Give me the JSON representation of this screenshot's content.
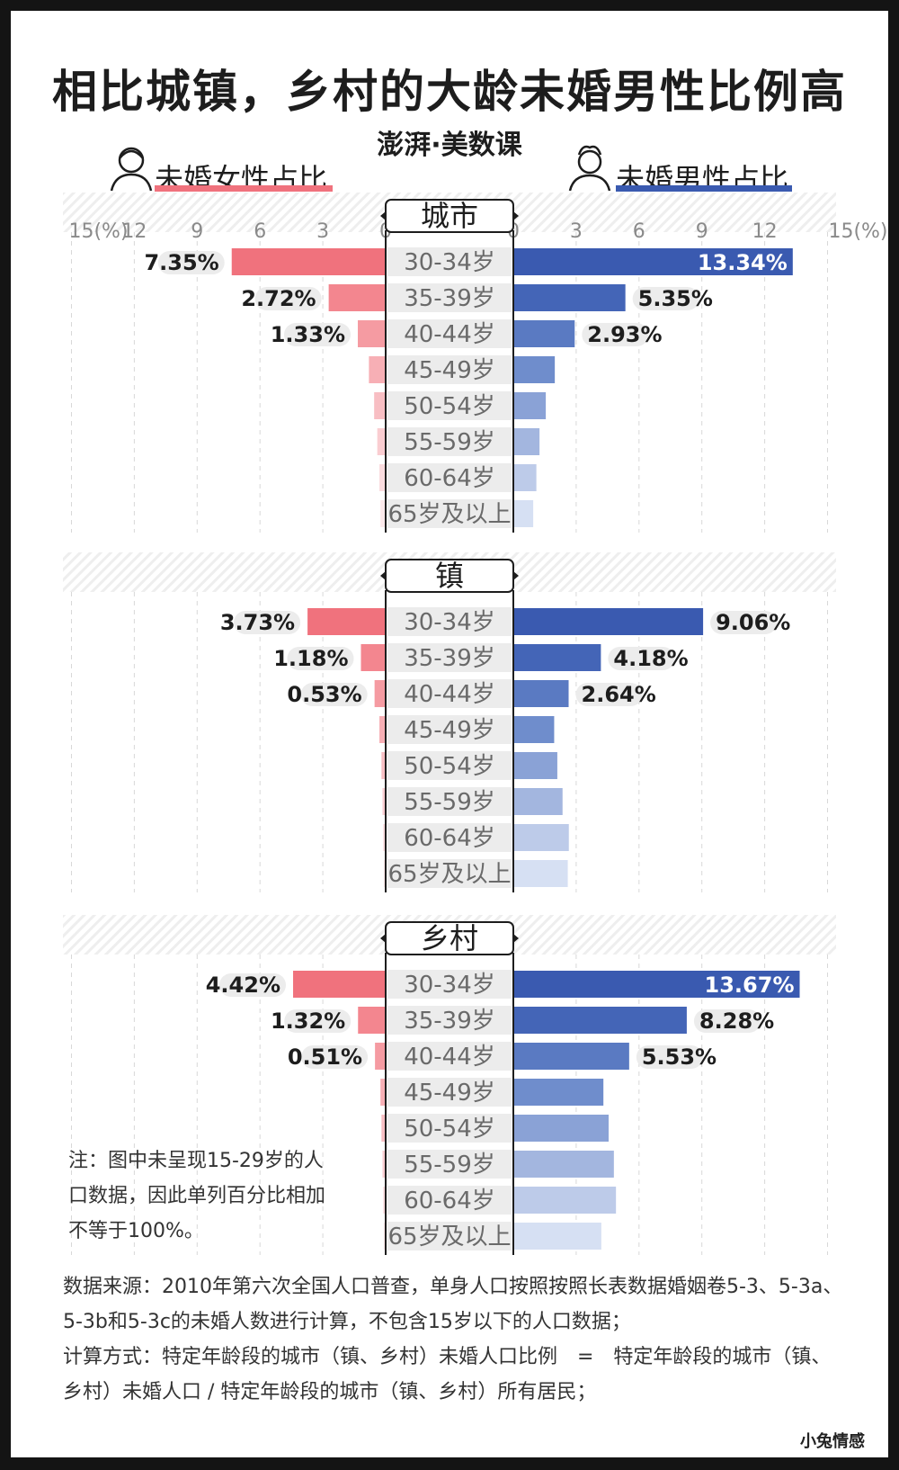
{
  "title": "相比城镇，乡村的大龄未婚男性比例高",
  "brand": "澎湃·美数课",
  "legend": {
    "female_label": "未婚女性占比",
    "male_label": "未婚男性占比"
  },
  "colors": {
    "female": "#f0727d",
    "male": "#3a5ab0",
    "label_bg": "#ececec",
    "stripe": "#eeeeee"
  },
  "chart_data": {
    "type": "bar",
    "axis": {
      "left_ticks": [
        "15(%)",
        "12",
        "9",
        "6",
        "3",
        "0"
      ],
      "right_ticks": [
        "0",
        "3",
        "6",
        "9",
        "12",
        "15(%)"
      ],
      "xlim": [
        0,
        15
      ]
    },
    "categories": [
      "30-34岁",
      "35-39岁",
      "40-44岁",
      "45-49岁",
      "50-54岁",
      "55-59岁",
      "60-64岁",
      "65岁及以上"
    ],
    "panels": [
      {
        "name": "城市",
        "female": [
          7.35,
          2.72,
          1.33,
          0.8,
          0.55,
          0.4,
          0.3,
          0.25
        ],
        "male": [
          13.34,
          5.35,
          2.93,
          1.98,
          1.55,
          1.25,
          1.1,
          0.95
        ],
        "female_labels": [
          "7.35%",
          "2.72%",
          "1.33%",
          "",
          "",
          "",
          "",
          ""
        ],
        "male_labels": [
          "13.34%",
          "5.35%",
          "2.93%",
          "",
          "",
          "",
          "",
          ""
        ]
      },
      {
        "name": "镇",
        "female": [
          3.73,
          1.18,
          0.53,
          0.3,
          0.2,
          0.15,
          0.12,
          0.1
        ],
        "male": [
          9.06,
          4.18,
          2.64,
          1.95,
          2.1,
          2.35,
          2.65,
          2.6
        ],
        "female_labels": [
          "3.73%",
          "1.18%",
          "0.53%",
          "",
          "",
          "",
          "",
          ""
        ],
        "male_labels": [
          "9.06%",
          "4.18%",
          "2.64%",
          "",
          "",
          "",
          "",
          ""
        ]
      },
      {
        "name": "乡村",
        "female": [
          4.42,
          1.32,
          0.51,
          0.25,
          0.2,
          0.15,
          0.12,
          0.1
        ],
        "male": [
          13.67,
          8.28,
          5.53,
          4.3,
          4.55,
          4.8,
          4.9,
          4.2
        ],
        "female_labels": [
          "4.42%",
          "1.32%",
          "0.51%",
          "",
          "",
          "",
          "",
          ""
        ],
        "male_labels": [
          "13.67%",
          "8.28%",
          "5.53%",
          "",
          "",
          "",
          "",
          ""
        ]
      }
    ]
  },
  "note": "注：图中未呈现15-29岁的人口数据，因此单列百分比相加不等于100%。",
  "footer": {
    "source": "数据来源：2010年第六次全国人口普查，单身人口按照按照长表数据婚姻卷5-3、5-3a、5-3b和5-3c的未婚人数进行计算，不包含15岁以下的人口数据；",
    "method": "计算方式：特定年龄段的城市（镇、乡村）未婚人口比例　=　特定年龄段的城市（镇、乡村）未婚人口 / 特定年龄段的城市（镇、乡村）所有居民；"
  },
  "watermark": "小兔情感"
}
